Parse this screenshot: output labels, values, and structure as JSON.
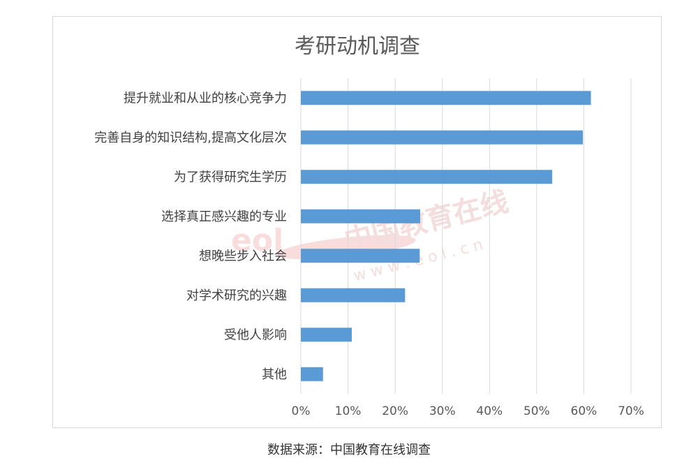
{
  "chart_data": {
    "type": "bar",
    "orientation": "horizontal",
    "title": "考研动机调查",
    "categories": [
      "提升就业和从业的核心竞争力",
      "完善自身的知识结构,提高文化层次",
      "为了获得研究生学历",
      "选择真正感兴趣的专业",
      "想晚些步入社会",
      "对学术研究的兴趣",
      "受他人影响",
      "其他"
    ],
    "values": [
      61.5,
      59.8,
      53.3,
      25.3,
      25.2,
      22.1,
      10.8,
      4.7
    ],
    "x_ticks": [
      "0%",
      "10%",
      "20%",
      "30%",
      "40%",
      "50%",
      "60%",
      "70%"
    ],
    "xlim": [
      0,
      70
    ],
    "grid": true,
    "color": "#5b9bd5"
  },
  "watermark": {
    "text": "中国教育在线",
    "url": "w w w . e o l . c n",
    "logo": "eol"
  },
  "source": "数据来源：中国教育在线调查"
}
